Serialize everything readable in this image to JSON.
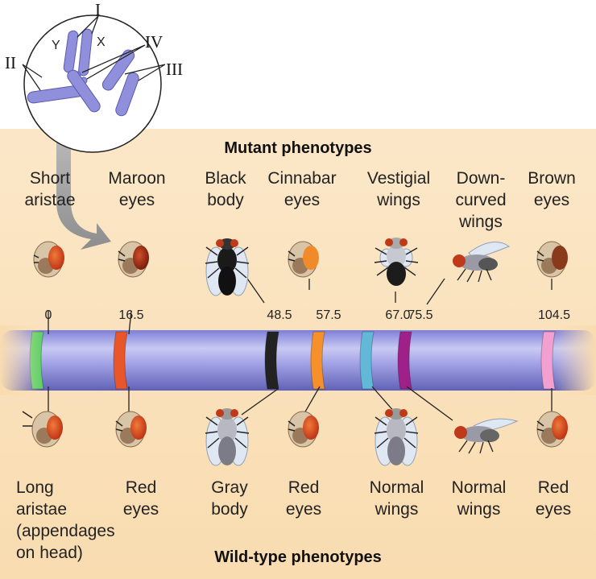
{
  "headings": {
    "mutant": "Mutant phenotypes",
    "wild": "Wild-type phenotypes"
  },
  "karyotype": {
    "roman": {
      "one": "I",
      "two": "II",
      "three": "III",
      "four": "IV"
    },
    "sex": {
      "x": "X",
      "y": "Y"
    }
  },
  "loci": [
    {
      "position": "0",
      "mutant": "Short\naristae",
      "wild": "Long\naristae\n(appendages\non head)",
      "band_color": "#5fd06a",
      "mutant_icon": "fly-head-icon",
      "wild_icon": "fly-head-icon"
    },
    {
      "position": "16.5",
      "mutant": "Maroon\neyes",
      "wild": "Red\neyes",
      "band_color": "#e8562a",
      "mutant_icon": "fly-head-icon",
      "wild_icon": "fly-head-icon"
    },
    {
      "position": "48.5",
      "mutant": "Black\nbody",
      "wild": "Gray\nbody",
      "band_color": "#222222",
      "mutant_icon": "black-body-fly-icon",
      "wild_icon": "gray-body-fly-icon"
    },
    {
      "position": "57.5",
      "mutant": "Cinnabar\neyes",
      "wild": "Red\neyes",
      "band_color": "#f5902a",
      "mutant_icon": "fly-head-icon",
      "wild_icon": "fly-head-icon"
    },
    {
      "position": "67.0",
      "mutant": "Vestigial\nwings",
      "wild": "Normal\nwings",
      "band_color": "#62b8d6",
      "mutant_icon": "vestigial-wing-fly-icon",
      "wild_icon": "normal-wing-fly-icon"
    },
    {
      "position": "75.5",
      "mutant": "Down-\ncurved\nwings",
      "wild": "Normal\nwings",
      "band_color": "#a0208a",
      "mutant_icon": "curved-wing-fly-side-icon",
      "wild_icon": "fly-side-icon"
    },
    {
      "position": "104.5",
      "mutant": "Brown\neyes",
      "wild": "Red\neyes",
      "band_color": "#f2a0cf",
      "mutant_icon": "fly-head-icon",
      "wild_icon": "fly-head-icon"
    }
  ]
}
